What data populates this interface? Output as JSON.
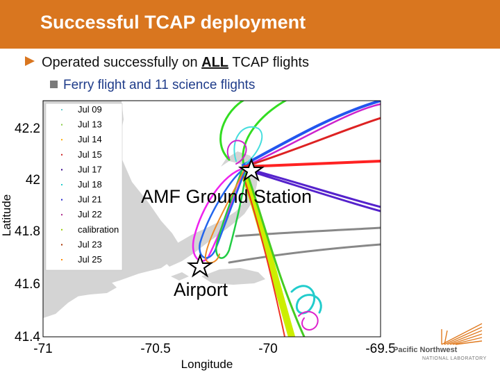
{
  "slide": {
    "title": "Successful TCAP deployment",
    "bullet1_prefix": "Operated successfully on ",
    "bullet1_emph": "ALL",
    "bullet1_suffix": " TCAP flights",
    "bullet2": "Ferry flight and 11 science flights",
    "colors": {
      "header": "#d9761f",
      "bullet2_text": "#1f3c8a"
    }
  },
  "map": {
    "xlabel": "Longitude",
    "ylabel": "Latitude",
    "x_ticks": [
      "-71",
      "-70.5",
      "-70",
      "-69.5"
    ],
    "y_ticks": [
      "42.2",
      "42",
      "41.8",
      "41.6",
      "41.4"
    ],
    "xlim": [
      -71,
      -69.5
    ],
    "ylim": [
      41.4,
      42.3
    ],
    "annotations": {
      "ground_station": "AMF Ground Station",
      "airport": "Airport"
    },
    "legend": [
      {
        "label": "Jul 09",
        "color": "#66cccc"
      },
      {
        "label": "Jul 13",
        "color": "#88cc44"
      },
      {
        "label": "Jul 14",
        "color": "#ffaa00"
      },
      {
        "label": "Jul 15",
        "color": "#cc2222"
      },
      {
        "label": "Jul 17",
        "color": "#330088"
      },
      {
        "label": "Jul 18",
        "color": "#22cccc"
      },
      {
        "label": "Jul 21",
        "color": "#2222cc"
      },
      {
        "label": "Jul 22",
        "color": "#aa2288"
      },
      {
        "label": "calibration",
        "color": "#99cc00"
      },
      {
        "label": "Jul 23",
        "color": "#aa3300"
      },
      {
        "label": "Jul 25",
        "color": "#ff8800"
      }
    ]
  },
  "logo": {
    "line1": "Pacific Northwest",
    "line2": "NATIONAL LABORATORY",
    "color": "#e07a1f"
  }
}
